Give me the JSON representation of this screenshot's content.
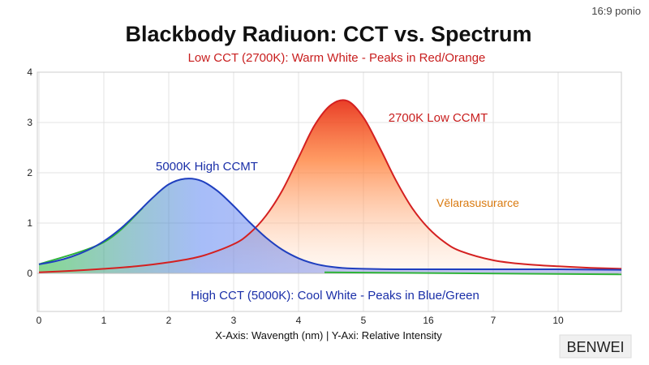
{
  "chart_data": {
    "type": "area",
    "title": "Blackbody Radiuon: CCT vs. Spectrum",
    "subtitle": "Low CCT (2700K): Warm White - Peaks in Red/Orange",
    "caption": "High CCT (5000K): Cool White - Peaks in Blue/Green",
    "xlabel": "X-Axis: Wavength (nm) | Y-Axi: Relative Intensity",
    "ylabel": "",
    "corner_label": "16:9 ponio",
    "watermark": "BENWEI",
    "x_tick_labels": [
      "0",
      "1",
      "2",
      "3",
      "4",
      "5",
      "16",
      "7",
      "10"
    ],
    "y_tick_labels": [
      "0",
      "1",
      "2",
      "3",
      "4"
    ],
    "xlim": [
      0,
      9
    ],
    "ylim": [
      -0.7,
      4
    ],
    "grid": true,
    "series": [
      {
        "name": "5000K High CCMT",
        "color": "#1f3fbf",
        "gradient": [
          "#22bb33",
          "#3b6cf0",
          "#4a5ce0"
        ],
        "x": [
          0,
          0.25,
          0.5,
          0.75,
          1.0,
          1.25,
          1.5,
          1.75,
          2.0,
          2.25,
          2.5,
          2.75,
          3.0,
          3.25,
          3.5,
          3.75,
          4.0,
          4.25,
          4.5,
          4.75,
          5.0,
          5.5,
          6.0,
          7.0,
          8.0,
          9.0
        ],
        "values": [
          0.18,
          0.24,
          0.33,
          0.46,
          0.64,
          0.88,
          1.18,
          1.5,
          1.77,
          1.88,
          1.84,
          1.64,
          1.34,
          1.01,
          0.71,
          0.47,
          0.3,
          0.19,
          0.13,
          0.1,
          0.09,
          0.08,
          0.08,
          0.08,
          0.08,
          0.07
        ]
      },
      {
        "name": "2700K Low CCMT",
        "color": "#d42020",
        "gradient": [
          "#e8341c",
          "#ff7a30",
          "#ffe6d2"
        ],
        "x": [
          0,
          0.5,
          1.0,
          1.5,
          2.0,
          2.5,
          3.0,
          3.25,
          3.5,
          3.75,
          4.0,
          4.25,
          4.5,
          4.75,
          5.0,
          5.25,
          5.5,
          5.75,
          6.0,
          6.25,
          6.5,
          7.0,
          7.5,
          8.0,
          8.5,
          9.0
        ],
        "values": [
          0.02,
          0.05,
          0.09,
          0.14,
          0.22,
          0.34,
          0.58,
          0.8,
          1.15,
          1.65,
          2.3,
          2.95,
          3.35,
          3.43,
          3.1,
          2.5,
          1.85,
          1.3,
          0.9,
          0.62,
          0.44,
          0.26,
          0.18,
          0.14,
          0.11,
          0.09
        ]
      }
    ],
    "annotations": [
      {
        "text": "5000K High CCMT",
        "color": "#1a2fa8"
      },
      {
        "text": "2700K Low CCMT",
        "color": "#c81e1e"
      },
      {
        "text": "Vělarasusurarce",
        "color": "#d97a10"
      }
    ]
  }
}
